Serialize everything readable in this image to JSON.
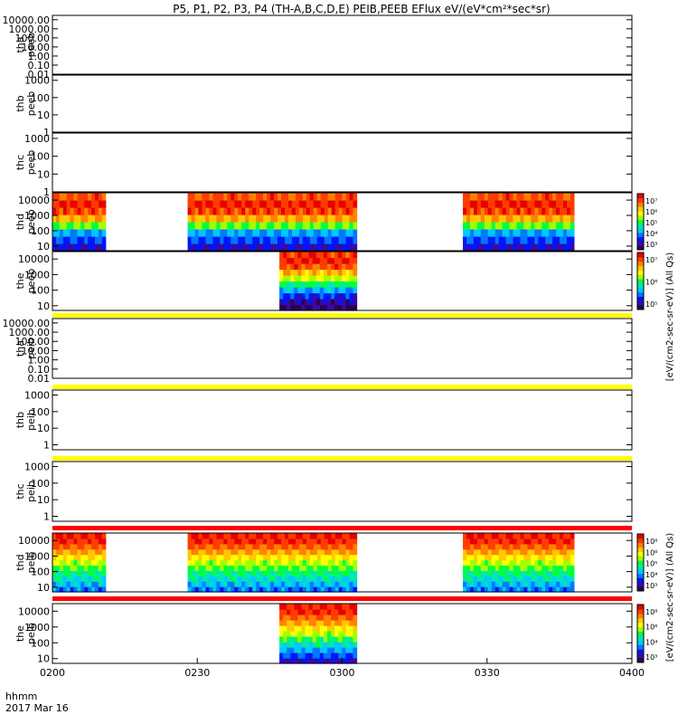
{
  "title": "P5, P1, P2, P3, P4 (TH-A,B,C,D,E) PEIB,PEEB EFlux eV/(eV*cm²*sec*sr)",
  "xaxis": {
    "ticks": [
      "0200",
      "0230",
      "0300",
      "0330",
      "0400"
    ],
    "label_line1": "hhmm",
    "label_line2": "2017 Mar 16",
    "range_minutes": [
      0,
      120
    ],
    "tick_minutes": [
      0,
      30,
      60,
      90,
      120
    ]
  },
  "colorbar_labels": {
    "electron": "[eV/(cm2-sec-sr-eV)] (All Qs)",
    "ion": "[eV/(cm2-sec-sr-eV)] (All Qs)"
  },
  "colors": {
    "flag_yellow": "#ffff00",
    "flag_red": "#ff0000",
    "colormap": [
      "#2d004d",
      "#3a0aa0",
      "#0014ff",
      "#0078ff",
      "#00c8ff",
      "#00e6b4",
      "#00ff40",
      "#a0ff00",
      "#ffff00",
      "#ffc800",
      "#ff8200",
      "#ff3c00",
      "#e60000"
    ]
  },
  "chart_data": [
    {
      "type": "heatmap",
      "ylabel_line1": "tha",
      "ylabel_line2": "peeb",
      "yscale": "log",
      "yticks": [
        "10000.00",
        "1000.00",
        "100.00",
        "10.00",
        "1.00",
        "0.10",
        "0.01"
      ],
      "ylim": [
        0.01,
        30000
      ],
      "blocks": []
    },
    {
      "type": "heatmap",
      "ylabel_line1": "thb",
      "ylabel_line2": "peeb",
      "yscale": "log",
      "yticks": [
        "1000",
        "100",
        "10",
        "1"
      ],
      "ylim": [
        1,
        2000
      ],
      "blocks": []
    },
    {
      "type": "heatmap",
      "ylabel_line1": "thc",
      "ylabel_line2": "peeb",
      "yscale": "log",
      "yticks": [
        "1000",
        "100",
        "10",
        "1"
      ],
      "ylim": [
        1,
        2000
      ],
      "blocks": []
    },
    {
      "type": "heatmap",
      "ylabel_line1": "thd",
      "ylabel_line2": "peeb",
      "yscale": "log",
      "yticks": [
        "10000",
        "1000",
        "100",
        "10"
      ],
      "ylim": [
        5,
        30000
      ],
      "colorbar": {
        "ticks": [
          "10⁷",
          "10⁶",
          "10⁵",
          "10⁴",
          "10³"
        ]
      },
      "profile": [
        0.12,
        0.2,
        0.3,
        0.55,
        0.78,
        0.92,
        0.96,
        0.9
      ],
      "blocks": [
        {
          "start": 0,
          "end": 11
        },
        {
          "start": 28,
          "end": 63
        },
        {
          "start": 85,
          "end": 108
        }
      ]
    },
    {
      "type": "heatmap",
      "ylabel_line1": "the",
      "ylabel_line2": "peeb",
      "yscale": "log",
      "yticks": [
        "10000",
        "1000",
        "100",
        "10"
      ],
      "ylim": [
        5,
        30000
      ],
      "colorbar": {
        "ticks": [
          "10⁷",
          "10⁶",
          "10⁵"
        ]
      },
      "profile": [
        0.02,
        0.08,
        0.18,
        0.32,
        0.48,
        0.62,
        0.76,
        0.9,
        0.96,
        0.93
      ],
      "blocks": [
        {
          "start": 47,
          "end": 63
        }
      ]
    },
    {
      "type": "heatmap",
      "ylabel_line1": "tha",
      "ylabel_line2": "peib",
      "yscale": "log",
      "yticks": [
        "10000.00",
        "1000.00",
        "100.00",
        "10.00",
        "1.00",
        "0.10",
        "0.01"
      ],
      "ylim": [
        0.01,
        30000
      ],
      "flag_above": "yellow",
      "blocks": []
    },
    {
      "type": "heatmap",
      "ylabel_line1": "thb",
      "ylabel_line2": "peib",
      "yscale": "log",
      "yticks": [
        "1000",
        "100",
        "10",
        "1"
      ],
      "ylim": [
        0.5,
        2000
      ],
      "flag_above": "yellow",
      "blocks": []
    },
    {
      "type": "heatmap",
      "ylabel_line1": "thc",
      "ylabel_line2": "peib",
      "yscale": "log",
      "yticks": [
        "1000",
        "100",
        "10",
        "1"
      ],
      "ylim": [
        0.5,
        2000
      ],
      "flag_above": "yellow",
      "blocks": []
    },
    {
      "type": "heatmap",
      "ylabel_line1": "thd",
      "ylabel_line2": "peib",
      "yscale": "log",
      "yticks": [
        "10000",
        "1000",
        "100",
        "10"
      ],
      "ylim": [
        5,
        30000
      ],
      "flag_above": "red",
      "colorbar": {
        "ticks": [
          "10⁸",
          "10⁶",
          "10⁵",
          "10⁴",
          "10³"
        ]
      },
      "profile": [
        0.25,
        0.33,
        0.4,
        0.46,
        0.52,
        0.6,
        0.7,
        0.8,
        0.88,
        0.94,
        0.96
      ],
      "blocks": [
        {
          "start": 0,
          "end": 11
        },
        {
          "start": 28,
          "end": 63
        },
        {
          "start": 85,
          "end": 108
        }
      ]
    },
    {
      "type": "heatmap",
      "ylabel_line1": "the",
      "ylabel_line2": "peib",
      "yscale": "log",
      "yticks": [
        "10000",
        "1000",
        "100",
        "10"
      ],
      "ylim": [
        5,
        30000
      ],
      "flag_above": "red",
      "colorbar": {
        "ticks": [
          "10⁸",
          "10⁶",
          "10⁴",
          "10³"
        ]
      },
      "profile": [
        0.12,
        0.22,
        0.3,
        0.4,
        0.5,
        0.6,
        0.7,
        0.8,
        0.88,
        0.94,
        0.96
      ],
      "blocks": [
        {
          "start": 47,
          "end": 63
        }
      ]
    }
  ]
}
